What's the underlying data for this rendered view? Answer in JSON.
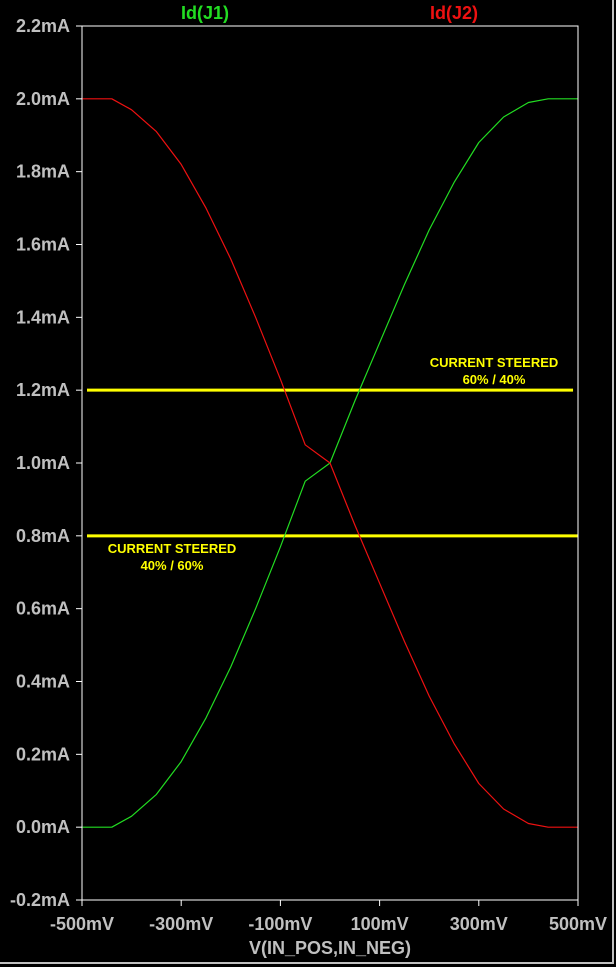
{
  "chart_data": {
    "type": "line",
    "xlabel": "V(IN_POS,IN_NEG)",
    "x_ticks": [
      {
        "value": -500,
        "label": "-500mV"
      },
      {
        "value": -300,
        "label": "-300mV"
      },
      {
        "value": -100,
        "label": "-100mV"
      },
      {
        "value": 100,
        "label": "100mV"
      },
      {
        "value": 300,
        "label": "300mV"
      },
      {
        "value": 500,
        "label": "500mV"
      }
    ],
    "xlim": [
      -500,
      500
    ],
    "ylim": [
      -0.2,
      2.2
    ],
    "y_ticks": [
      {
        "value": 2.2,
        "label": "2.2mA"
      },
      {
        "value": 2.0,
        "label": "2.0mA"
      },
      {
        "value": 1.8,
        "label": "1.8mA"
      },
      {
        "value": 1.6,
        "label": "1.6mA"
      },
      {
        "value": 1.4,
        "label": "1.4mA"
      },
      {
        "value": 1.2,
        "label": "1.2mA"
      },
      {
        "value": 1.0,
        "label": "1.0mA"
      },
      {
        "value": 0.8,
        "label": "0.8mA"
      },
      {
        "value": 0.6,
        "label": "0.6mA"
      },
      {
        "value": 0.4,
        "label": "0.4mA"
      },
      {
        "value": 0.2,
        "label": "0.2mA"
      },
      {
        "value": 0.0,
        "label": "0.0mA"
      },
      {
        "value": -0.2,
        "label": "-0.2mA"
      }
    ],
    "grid": false,
    "series": [
      {
        "name": "Id(J1)",
        "color": "#22dd22",
        "x": [
          -500,
          -440,
          -400,
          -350,
          -300,
          -250,
          -200,
          -150,
          -100,
          -50,
          0,
          50,
          100,
          150,
          200,
          250,
          300,
          350,
          400,
          440,
          500
        ],
        "y": [
          0.0,
          0.0,
          0.03,
          0.09,
          0.18,
          0.3,
          0.44,
          0.6,
          0.77,
          0.95,
          1.0,
          1.17,
          1.33,
          1.49,
          1.64,
          1.77,
          1.88,
          1.95,
          1.99,
          2.0,
          2.0
        ]
      },
      {
        "name": "Id(J2)",
        "color": "#ee1111",
        "x": [
          -500,
          -440,
          -400,
          -350,
          -300,
          -250,
          -200,
          -150,
          -100,
          -50,
          0,
          50,
          100,
          150,
          200,
          250,
          300,
          350,
          400,
          440,
          500
        ],
        "y": [
          2.0,
          2.0,
          1.97,
          1.91,
          1.82,
          1.7,
          1.56,
          1.4,
          1.23,
          1.05,
          1.0,
          0.83,
          0.67,
          0.51,
          0.36,
          0.23,
          0.12,
          0.05,
          0.01,
          0.0,
          0.0
        ]
      }
    ],
    "reference_lines": [
      {
        "y": 1.2,
        "x_start": -500,
        "x_end": 490,
        "color": "#ffff00"
      },
      {
        "y": 0.8,
        "x_start": -500,
        "x_end": 500,
        "color": "#ffff00"
      }
    ],
    "annotations": [
      {
        "line1": "CURRENT STEERED",
        "line2": "60% / 40%",
        "color": "#ffff00"
      },
      {
        "line1": "CURRENT STEERED",
        "line2": "40% / 60%",
        "color": "#ffff00"
      }
    ]
  },
  "colors": {
    "background": "#000000",
    "axis": "#ffffff",
    "tick_text": "#c0c0c0",
    "annotation": "#ffff00"
  }
}
